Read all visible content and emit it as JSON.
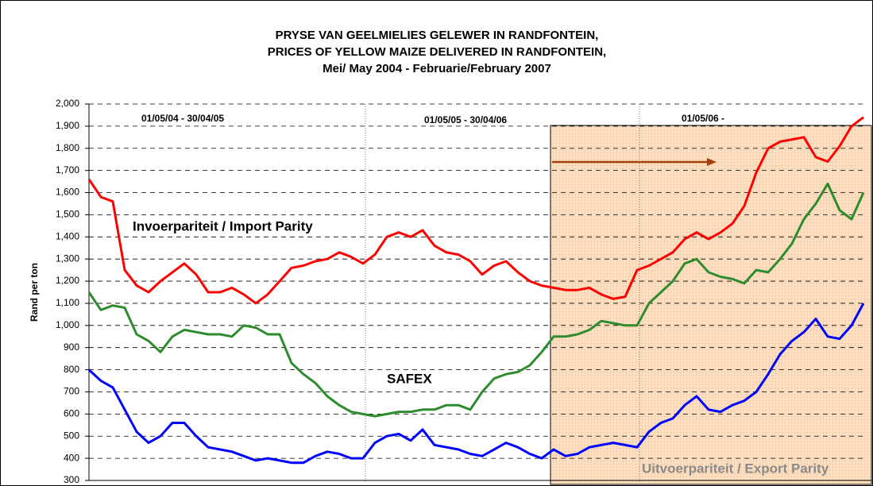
{
  "chart_data": {
    "type": "line",
    "title": [
      "PRYSE VAN GEELMIELIES GELEWER IN RANDFONTEIN,",
      "PRICES OF YELLOW  MAIZE DELIVERED IN RANDFONTEIN,",
      "Mei/ May 2004 - Februarie/February 2007"
    ],
    "ylabel": "Rand per ton",
    "ylim": [
      300,
      2000
    ],
    "yticks": [
      300,
      400,
      500,
      600,
      700,
      800,
      900,
      {
        "value": 1000,
        "label": "1,000"
      },
      {
        "value": 1100,
        "label": "1,100"
      },
      {
        "value": 1200,
        "label": "1,200"
      },
      {
        "value": 1300,
        "label": "1,300"
      },
      {
        "value": 1400,
        "label": "1,400"
      },
      {
        "value": 1500,
        "label": "1,500"
      },
      {
        "value": 1600,
        "label": "1,600"
      },
      {
        "value": 1700,
        "label": "1,700"
      },
      {
        "value": 1800,
        "label": "1,800"
      },
      {
        "value": 1900,
        "label": "1,900"
      },
      {
        "value": 2000,
        "label": "2,000"
      }
    ],
    "grid": true,
    "period_labels": [
      "01/05/04 - 30/04/05",
      "01/05/05 - 30/04/06",
      "01/05/06 -"
    ],
    "annotations": [
      "Invoerpariteit / Import Parity",
      "SAFEX",
      "Uitvoerpariteit / Export Parity"
    ],
    "categories": [
      null,
      null,
      null,
      null,
      null,
      null,
      null,
      null,
      null,
      null,
      null,
      null,
      null,
      null,
      null,
      null,
      null,
      null,
      null,
      null,
      null,
      null,
      null,
      null,
      null,
      null,
      null,
      null,
      null,
      null,
      null,
      null,
      null,
      null,
      null,
      null,
      null,
      null,
      null,
      null,
      null,
      null,
      null,
      null,
      null,
      null,
      null,
      null,
      null,
      null,
      null,
      null,
      null,
      null,
      null,
      null,
      null,
      null,
      null,
      null,
      null,
      null,
      null,
      null,
      null,
      null
    ],
    "series": [
      {
        "color": "#ff0000",
        "values": [
          1660,
          1580,
          1560,
          1250,
          1180,
          1150,
          1200,
          1240,
          1280,
          1230,
          1150,
          1150,
          1170,
          1140,
          1100,
          1140,
          1200,
          1260,
          1270,
          1290,
          1300,
          1330,
          1310,
          1280,
          1320,
          1400,
          1420,
          1400,
          1430,
          1360,
          1330,
          1320,
          1290,
          1230,
          1270,
          1290,
          1240,
          1200,
          1180,
          1170,
          1160,
          1160,
          1170,
          1140,
          1120,
          1130,
          1250,
          1270,
          1300,
          1330,
          1390,
          1420,
          1390,
          1420,
          1460,
          1540,
          1690,
          1800,
          1830,
          1840,
          1850,
          1760,
          1740,
          1810,
          1900,
          1940
        ]
      },
      {
        "color": "#2e8b2e",
        "values": [
          1150,
          1070,
          1090,
          1080,
          960,
          930,
          880,
          950,
          980,
          970,
          960,
          960,
          950,
          1000,
          990,
          960,
          960,
          830,
          780,
          740,
          680,
          640,
          610,
          600,
          590,
          600,
          610,
          610,
          620,
          620,
          640,
          640,
          620,
          700,
          760,
          780,
          790,
          820,
          880,
          950,
          950,
          960,
          980,
          1020,
          1010,
          1000,
          1000,
          1100,
          1150,
          1200,
          1280,
          1300,
          1240,
          1220,
          1210,
          1190,
          1250,
          1240,
          1300,
          1370,
          1480,
          1550,
          1640,
          1520,
          1480,
          1600
        ]
      },
      {
        "color": "#0000ff",
        "values": [
          800,
          750,
          720,
          620,
          520,
          470,
          500,
          560,
          560,
          500,
          450,
          440,
          430,
          410,
          390,
          400,
          390,
          380,
          380,
          410,
          430,
          420,
          400,
          400,
          470,
          500,
          510,
          480,
          530,
          460,
          450,
          440,
          420,
          410,
          440,
          470,
          450,
          420,
          400,
          440,
          410,
          420,
          450,
          460,
          470,
          460,
          450,
          520,
          560,
          580,
          640,
          680,
          620,
          610,
          640,
          660,
          700,
          780,
          870,
          930,
          970,
          1030,
          950,
          940,
          1000,
          1100
        ]
      }
    ]
  }
}
